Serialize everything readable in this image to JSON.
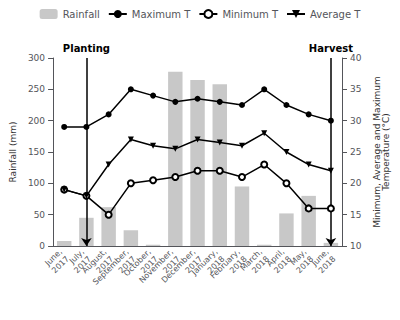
{
  "chart_data": {
    "type": "bar",
    "categories": [
      "June,\n2017",
      "July,\n2017",
      "August,\n2017",
      "September,\n2017",
      "October,\n2017",
      "November,\n2017",
      "December,\n2017",
      "January,\n2018",
      "February,\n2018",
      "March,\n2018",
      "April,\n2018",
      "May,\n2018",
      "June,\n2018"
    ],
    "series": [
      {
        "name": "Rainfall",
        "type": "bar",
        "color": "#c8c8c8",
        "values": [
          8,
          45,
          62,
          25,
          2,
          278,
          265,
          258,
          95,
          2,
          52,
          80,
          5
        ]
      },
      {
        "name": "Maximum T",
        "type": "line",
        "axis": "y2",
        "color": "#000000",
        "marker": "circle",
        "values": [
          29,
          29,
          31,
          35,
          34,
          33,
          33.5,
          33,
          32.5,
          35,
          32.5,
          31,
          30
        ]
      },
      {
        "name": "Minimum T",
        "type": "line",
        "axis": "y2",
        "color": "#000000",
        "marker": "open_circle",
        "values": [
          19,
          18,
          15,
          20,
          20.5,
          21,
          22,
          22,
          21,
          23,
          20,
          16,
          16
        ]
      },
      {
        "name": "Average T",
        "type": "line",
        "axis": "y2",
        "color": "#000000",
        "marker": "triangle_down",
        "values": [
          19,
          18,
          23,
          27,
          26,
          25.5,
          27,
          26.5,
          26,
          28,
          25,
          23,
          22
        ]
      }
    ],
    "ylabel": "Rainfall (mm)",
    "y2label": "Minimum, Average and Maximum\nTemperature (°C)",
    "ylim": [
      0,
      300
    ],
    "yticks": [
      0,
      50,
      100,
      150,
      200,
      250,
      300
    ],
    "y2lim": [
      10,
      40
    ],
    "y2ticks": [
      10,
      15,
      20,
      25,
      30,
      35,
      40
    ],
    "annotations": [
      {
        "text": "Planting",
        "x": "July,\n2017"
      },
      {
        "text": "Harvest",
        "x": "June,\n2018"
      }
    ],
    "grid": false,
    "legend": "top"
  }
}
